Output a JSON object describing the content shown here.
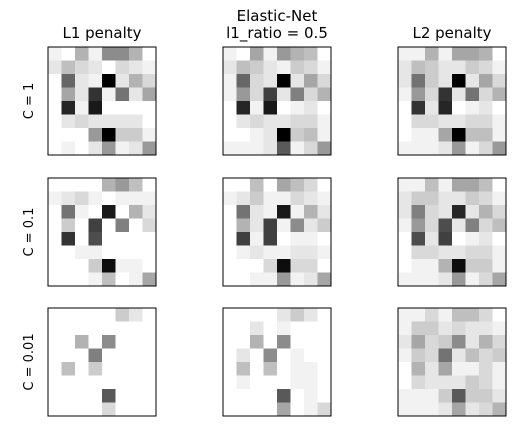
{
  "figure": {
    "col_titles": [
      [
        "L1 penalty"
      ],
      [
        "Elastic-Net",
        "l1_ratio = 0.5"
      ],
      [
        "L2 penalty"
      ]
    ],
    "row_labels": [
      "C = 1",
      "C = 0.1",
      "C = 0.01"
    ]
  },
  "chart_data": {
    "type": "heatmap",
    "colormap": "gray_r",
    "grid_size": [
      8,
      8
    ],
    "value_range": [
      0,
      1
    ],
    "axes_ticks": false,
    "panels": [
      {
        "row": "C = 1",
        "col": "L1 penalty",
        "values": [
          [
            0.05,
            0.0,
            0.3,
            0.05,
            0.45,
            0.45,
            0.3,
            0.0
          ],
          [
            0.1,
            0.25,
            0.15,
            0.1,
            0.0,
            0.15,
            0.1,
            0.05
          ],
          [
            0.0,
            0.6,
            0.1,
            0.05,
            1.0,
            0.1,
            0.3,
            0.15
          ],
          [
            0.0,
            0.35,
            0.1,
            0.8,
            0.05,
            0.55,
            0.1,
            0.35
          ],
          [
            0.0,
            0.85,
            0.05,
            0.9,
            0.0,
            0.0,
            0.0,
            0.0
          ],
          [
            0.0,
            0.1,
            0.15,
            0.1,
            0.1,
            0.1,
            0.1,
            0.0
          ],
          [
            0.0,
            0.0,
            0.0,
            0.4,
            1.0,
            0.2,
            0.2,
            0.05
          ],
          [
            0.0,
            0.05,
            0.0,
            0.1,
            0.4,
            0.05,
            0.1,
            0.4
          ]
        ]
      },
      {
        "row": "C = 1",
        "col": "Elastic-Net l1_ratio = 0.5",
        "values": [
          [
            0.05,
            0.0,
            0.35,
            0.05,
            0.4,
            0.3,
            0.25,
            0.0
          ],
          [
            0.1,
            0.25,
            0.2,
            0.1,
            0.05,
            0.2,
            0.15,
            0.05
          ],
          [
            0.05,
            0.6,
            0.15,
            0.1,
            1.0,
            0.1,
            0.35,
            0.15
          ],
          [
            0.05,
            0.4,
            0.15,
            0.75,
            0.1,
            0.5,
            0.15,
            0.3
          ],
          [
            0.0,
            0.85,
            0.05,
            0.9,
            0.0,
            0.05,
            0.1,
            0.0
          ],
          [
            0.0,
            0.1,
            0.15,
            0.1,
            0.1,
            0.15,
            0.15,
            0.05
          ],
          [
            0.0,
            0.0,
            0.05,
            0.1,
            1.0,
            0.2,
            0.25,
            0.05
          ],
          [
            0.05,
            0.05,
            0.05,
            0.1,
            0.65,
            0.05,
            0.15,
            0.4
          ]
        ]
      },
      {
        "row": "C = 1",
        "col": "L2 penalty",
        "values": [
          [
            0.05,
            0.05,
            0.3,
            0.05,
            0.35,
            0.35,
            0.3,
            0.0
          ],
          [
            0.1,
            0.25,
            0.2,
            0.1,
            0.1,
            0.2,
            0.15,
            0.05
          ],
          [
            0.1,
            0.55,
            0.2,
            0.1,
            1.0,
            0.1,
            0.35,
            0.15
          ],
          [
            0.05,
            0.4,
            0.15,
            0.8,
            0.1,
            0.55,
            0.15,
            0.3
          ],
          [
            0.0,
            0.8,
            0.1,
            0.85,
            0.0,
            0.05,
            0.1,
            0.0
          ],
          [
            0.0,
            0.15,
            0.15,
            0.1,
            0.1,
            0.15,
            0.15,
            0.05
          ],
          [
            0.0,
            0.05,
            0.05,
            0.35,
            1.0,
            0.25,
            0.25,
            0.05
          ],
          [
            0.05,
            0.05,
            0.05,
            0.1,
            0.4,
            0.05,
            0.15,
            0.4
          ]
        ]
      },
      {
        "row": "C = 0.1",
        "col": "L1 penalty",
        "values": [
          [
            0.0,
            0.0,
            0.0,
            0.0,
            0.3,
            0.4,
            0.25,
            0.0
          ],
          [
            0.05,
            0.1,
            0.15,
            0.05,
            0.0,
            0.05,
            0.05,
            0.05
          ],
          [
            0.0,
            0.55,
            0.05,
            0.0,
            0.9,
            0.0,
            0.3,
            0.1
          ],
          [
            0.0,
            0.2,
            0.0,
            0.75,
            0.0,
            0.5,
            0.0,
            0.15
          ],
          [
            0.0,
            0.8,
            0.0,
            0.7,
            0.0,
            0.0,
            0.0,
            0.0
          ],
          [
            0.0,
            0.0,
            0.05,
            0.05,
            0.0,
            0.0,
            0.0,
            0.0
          ],
          [
            0.0,
            0.0,
            0.0,
            0.2,
            0.95,
            0.05,
            0.05,
            0.0
          ],
          [
            0.0,
            0.0,
            0.0,
            0.05,
            0.25,
            0.0,
            0.05,
            0.35
          ]
        ]
      },
      {
        "row": "C = 0.1",
        "col": "Elastic-Net l1_ratio = 0.5",
        "values": [
          [
            0.0,
            0.0,
            0.25,
            0.0,
            0.35,
            0.25,
            0.15,
            0.0
          ],
          [
            0.05,
            0.1,
            0.2,
            0.05,
            0.05,
            0.15,
            0.1,
            0.05
          ],
          [
            0.0,
            0.55,
            0.1,
            0.05,
            0.9,
            0.05,
            0.3,
            0.1
          ],
          [
            0.0,
            0.3,
            0.1,
            0.75,
            0.05,
            0.45,
            0.1,
            0.2
          ],
          [
            0.0,
            0.75,
            0.05,
            0.75,
            0.0,
            0.05,
            0.05,
            0.0
          ],
          [
            0.0,
            0.05,
            0.1,
            0.05,
            0.05,
            0.1,
            0.1,
            0.05
          ],
          [
            0.0,
            0.0,
            0.0,
            0.15,
            0.95,
            0.15,
            0.15,
            0.0
          ],
          [
            0.0,
            0.0,
            0.05,
            0.05,
            0.4,
            0.05,
            0.1,
            0.35
          ]
        ]
      },
      {
        "row": "C = 0.1",
        "col": "L2 penalty",
        "values": [
          [
            0.05,
            0.05,
            0.25,
            0.05,
            0.35,
            0.35,
            0.25,
            0.0
          ],
          [
            0.1,
            0.2,
            0.2,
            0.1,
            0.1,
            0.2,
            0.15,
            0.05
          ],
          [
            0.1,
            0.5,
            0.15,
            0.1,
            0.85,
            0.1,
            0.3,
            0.15
          ],
          [
            0.05,
            0.4,
            0.15,
            0.7,
            0.1,
            0.5,
            0.15,
            0.25
          ],
          [
            0.0,
            0.7,
            0.1,
            0.75,
            0.0,
            0.05,
            0.1,
            0.0
          ],
          [
            0.0,
            0.15,
            0.15,
            0.1,
            0.1,
            0.15,
            0.15,
            0.05
          ],
          [
            0.0,
            0.05,
            0.05,
            0.3,
            0.95,
            0.2,
            0.2,
            0.05
          ],
          [
            0.05,
            0.05,
            0.05,
            0.1,
            0.4,
            0.05,
            0.15,
            0.35
          ]
        ]
      },
      {
        "row": "C = 0.01",
        "col": "L1 penalty",
        "values": [
          [
            0.0,
            0.0,
            0.0,
            0.0,
            0.0,
            0.2,
            0.1,
            0.0
          ],
          [
            0.0,
            0.0,
            0.0,
            0.0,
            0.0,
            0.0,
            0.0,
            0.0
          ],
          [
            0.0,
            0.0,
            0.3,
            0.0,
            0.45,
            0.0,
            0.0,
            0.0
          ],
          [
            0.0,
            0.0,
            0.0,
            0.5,
            0.0,
            0.0,
            0.0,
            0.0
          ],
          [
            0.0,
            0.25,
            0.0,
            0.2,
            0.0,
            0.0,
            0.0,
            0.0
          ],
          [
            0.0,
            0.0,
            0.0,
            0.0,
            0.0,
            0.0,
            0.0,
            0.0
          ],
          [
            0.0,
            0.0,
            0.0,
            0.0,
            0.65,
            0.0,
            0.0,
            0.0
          ],
          [
            0.0,
            0.0,
            0.0,
            0.0,
            0.15,
            0.0,
            0.0,
            0.0
          ]
        ]
      },
      {
        "row": "C = 0.01",
        "col": "Elastic-Net l1_ratio = 0.5",
        "values": [
          [
            0.0,
            0.0,
            0.0,
            0.0,
            0.1,
            0.2,
            0.1,
            0.0
          ],
          [
            0.0,
            0.0,
            0.1,
            0.0,
            0.05,
            0.0,
            0.0,
            0.0
          ],
          [
            0.0,
            0.0,
            0.3,
            0.0,
            0.45,
            0.0,
            0.0,
            0.0
          ],
          [
            0.0,
            0.1,
            0.0,
            0.45,
            0.0,
            0.05,
            0.0,
            0.0
          ],
          [
            0.0,
            0.25,
            0.0,
            0.25,
            0.0,
            0.05,
            0.05,
            0.0
          ],
          [
            0.0,
            0.05,
            0.0,
            0.0,
            0.0,
            0.05,
            0.05,
            0.0
          ],
          [
            0.0,
            0.0,
            0.0,
            0.0,
            0.65,
            0.0,
            0.05,
            0.0
          ],
          [
            0.0,
            0.0,
            0.0,
            0.0,
            0.35,
            0.0,
            0.05,
            0.15
          ]
        ]
      },
      {
        "row": "C = 0.01",
        "col": "L2 penalty",
        "values": [
          [
            0.05,
            0.05,
            0.15,
            0.05,
            0.25,
            0.25,
            0.15,
            0.0
          ],
          [
            0.05,
            0.2,
            0.2,
            0.1,
            0.15,
            0.1,
            0.1,
            0.05
          ],
          [
            0.1,
            0.35,
            0.15,
            0.2,
            0.45,
            0.1,
            0.3,
            0.15
          ],
          [
            0.05,
            0.2,
            0.15,
            0.55,
            0.1,
            0.25,
            0.15,
            0.2
          ],
          [
            0.0,
            0.3,
            0.1,
            0.35,
            0.05,
            0.05,
            0.15,
            0.05
          ],
          [
            0.0,
            0.15,
            0.1,
            0.1,
            0.1,
            0.2,
            0.15,
            0.05
          ],
          [
            0.05,
            0.05,
            0.05,
            0.2,
            0.65,
            0.2,
            0.2,
            0.1
          ],
          [
            0.05,
            0.05,
            0.05,
            0.1,
            0.35,
            0.1,
            0.15,
            0.3
          ]
        ]
      }
    ]
  }
}
